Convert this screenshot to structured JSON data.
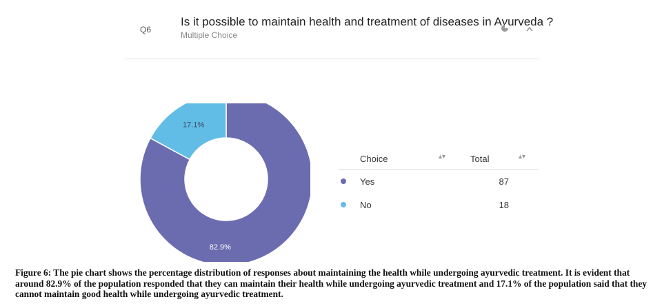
{
  "question": {
    "id": "Q6",
    "title": "Is it possible to maintain health and treatment of diseases in Ayurveda ?",
    "type": "Multiple Choice"
  },
  "chart_data": {
    "type": "pie",
    "donut": true,
    "categories": [
      "Yes",
      "No"
    ],
    "values": [
      82.9,
      17.1
    ],
    "data_labels": [
      "82.9%",
      "17.1%"
    ],
    "colors": [
      "#6b6cb0",
      "#62bde6"
    ],
    "title": "Is it possible to maintain health and treatment of diseases in Ayurveda ?"
  },
  "table": {
    "headers": [
      "Choice",
      "Total"
    ],
    "rows": [
      {
        "choice": "Yes",
        "total": "87",
        "color": "#6b6cb0"
      },
      {
        "choice": "No",
        "total": "18",
        "color": "#62bde6"
      }
    ]
  },
  "icons": [
    "chart-toggle-icon",
    "collapse-chevron-icon",
    "sort-icon"
  ],
  "caption": "Figure 6: The pie chart shows the percentage distribution of responses about maintaining the health while undergoing ayurvedic treatment. It is evident  that around 82.9% of the population responded that they can maintain their health while undergoing ayurvedic treatment and 17.1% of the population said that they cannot maintain good health while undergoing ayurvedic treatment."
}
